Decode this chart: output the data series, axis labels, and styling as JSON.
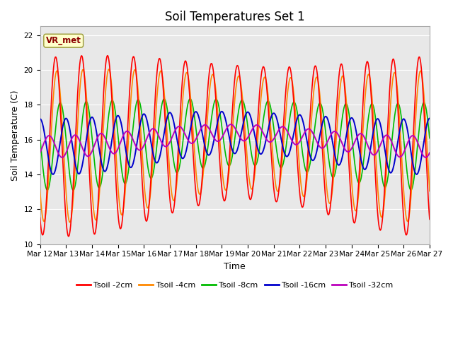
{
  "title": "Soil Temperatures Set 1",
  "xlabel": "Time",
  "ylabel": "Soil Temperature (C)",
  "ylim": [
    10,
    22.5
  ],
  "annotation": "VR_met",
  "series_labels": [
    "Tsoil -2cm",
    "Tsoil -4cm",
    "Tsoil -8cm",
    "Tsoil -16cm",
    "Tsoil -32cm"
  ],
  "series_colors": [
    "#ff0000",
    "#ff8800",
    "#00bb00",
    "#0000cc",
    "#bb00bb"
  ],
  "x_tick_labels": [
    "Mar 12",
    "Mar 13",
    "Mar 14",
    "Mar 15",
    "Mar 16",
    "Mar 17",
    "Mar 18",
    "Mar 19",
    "Mar 20",
    "Mar 21",
    "Mar 22",
    "Mar 23",
    "Mar 24",
    "Mar 25",
    "Mar 26",
    "Mar 27"
  ],
  "background_color": "#e8e8e8",
  "figure_color": "#ffffff",
  "grid_color": "#ffffff",
  "n_points": 1440,
  "yticks": [
    10,
    12,
    14,
    16,
    18,
    20,
    22
  ],
  "title_fontsize": 12,
  "axis_label_fontsize": 9,
  "tick_fontsize": 7.5
}
